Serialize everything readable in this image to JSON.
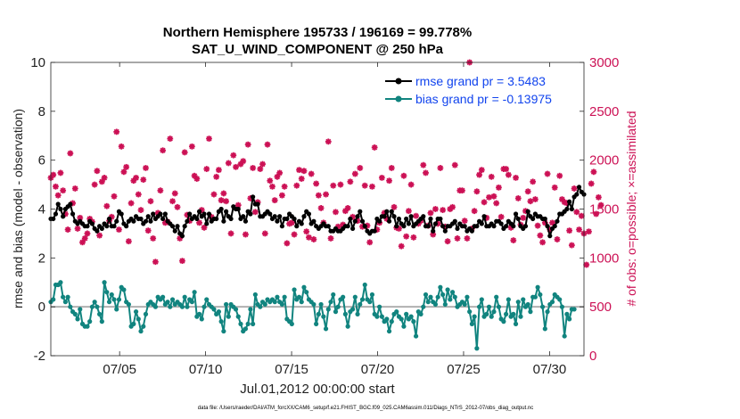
{
  "chart_data": {
    "type": "line",
    "title_line1": "Northern Hemisphere 195733 / 196169 = 99.778%",
    "title_line2": "SAT_U_WIND_COMPONENT @ 250 hPa",
    "xlabel": "Jul.01,2012 00:00:00 start",
    "ylabel_left": "rmse and bias (model - observation)",
    "ylabel_right": "# of obs: o=possible; ×=assimilated",
    "xlim": [
      1,
      32
    ],
    "ylim_left": [
      -2,
      10
    ],
    "ylim_right": [
      0,
      3000
    ],
    "x_ticks": [
      {
        "value": 5,
        "label": "07/05"
      },
      {
        "value": 10,
        "label": "07/10"
      },
      {
        "value": 15,
        "label": "07/15"
      },
      {
        "value": 20,
        "label": "07/20"
      },
      {
        "value": 25,
        "label": "07/25"
      },
      {
        "value": 30,
        "label": "07/30"
      }
    ],
    "y_ticks_left": [
      "-2",
      "0",
      "2",
      "4",
      "6",
      "8",
      "10"
    ],
    "y_ticks_right": [
      "0",
      "500",
      "1000",
      "1500",
      "2000",
      "2500",
      "3000"
    ],
    "legend_position": "top-right",
    "legend": [
      {
        "label": "rmse grand pr = 3.5483",
        "color": "#000000"
      },
      {
        "label": "bias grand pr = -0.13975",
        "color": "#11847f"
      }
    ],
    "colors": {
      "rmse": "#000000",
      "bias": "#11847f",
      "obs": "#cc1155",
      "zero_line": "#b0b0b0"
    },
    "series": [
      {
        "name": "rmse",
        "axis": "left",
        "values": [
          3.6,
          3.6,
          3.8,
          4.2,
          4.0,
          3.7,
          4.0,
          4.1,
          4.2,
          3.8,
          3.5,
          3.4,
          3.5,
          3.4,
          3.3,
          3.3,
          3.5,
          3.4,
          3.2,
          3.1,
          3.3,
          3.2,
          3.4,
          3.3,
          3.6,
          3.3,
          3.3,
          3.5,
          3.9,
          3.8,
          3.4,
          3.3,
          3.5,
          3.6,
          3.5,
          3.7,
          3.6,
          3.6,
          3.4,
          3.5,
          3.7,
          3.5,
          3.8,
          3.6,
          3.7,
          3.8,
          3.6,
          3.8,
          3.5,
          3.4,
          3.3,
          3.1,
          3.3,
          3.0,
          2.9,
          3.3,
          3.5,
          3.8,
          3.6,
          3.7,
          3.6,
          3.9,
          3.7,
          3.8,
          3.4,
          3.8,
          3.5,
          3.6,
          3.6,
          3.9,
          4.0,
          3.5,
          3.9,
          3.7,
          3.6,
          4.1,
          4.0,
          4.0,
          3.6,
          3.7,
          3.5,
          3.9,
          3.8,
          4.5,
          4.2,
          4.2,
          3.7,
          3.7,
          3.8,
          3.9,
          3.8,
          3.6,
          3.7,
          3.5,
          3.7,
          3.3,
          3.6,
          3.6,
          3.8,
          3.7,
          3.6,
          3.3,
          3.5,
          3.4,
          3.7,
          3.9,
          3.8,
          3.4,
          3.5,
          3.3,
          3.2,
          3.3,
          3.4,
          3.3,
          3.3,
          3.1,
          3.1,
          3.2,
          3.1,
          3.1,
          3.2,
          3.3,
          3.3,
          3.6,
          3.2,
          3.5,
          3.7,
          3.9,
          3.5,
          3.3,
          3.1,
          3.0,
          3.1,
          3.1,
          3.6,
          3.5,
          3.7,
          3.7,
          3.9,
          3.5,
          3.9,
          3.7,
          3.3,
          3.6,
          3.4,
          3.3,
          3.6,
          3.4,
          3.7,
          3.3,
          3.4,
          3.5,
          3.6,
          3.7,
          3.3,
          3.3,
          3.6,
          3.1,
          3.4,
          3.6,
          3.6,
          3.3,
          3.1,
          3.3,
          3.3,
          3.4,
          3.5,
          3.2,
          3.4,
          3.3,
          3.3,
          3.1,
          3.2,
          3.1,
          3.3,
          3.3,
          3.5,
          3.4,
          3.7,
          3.3,
          3.3,
          3.4,
          3.3,
          3.5,
          3.5,
          3.4,
          3.2,
          3.3,
          3.5,
          3.4,
          3.3,
          3.8,
          3.6,
          3.3,
          3.2,
          3.3,
          3.9,
          3.7,
          3.6,
          3.8,
          3.7,
          3.7,
          3.6,
          3.6,
          3.3,
          2.9,
          3.2,
          3.3,
          3.5,
          3.8,
          3.8,
          3.9,
          4.0,
          4.3,
          4.0,
          4.5,
          4.6,
          4.9,
          4.7,
          4.6
        ]
      },
      {
        "name": "bias",
        "axis": "left",
        "values": [
          0.2,
          0.3,
          0.9,
          0.9,
          1.0,
          0.4,
          0.2,
          0.4,
          0.0,
          -0.2,
          -0.3,
          -0.5,
          -0.1,
          -0.7,
          -0.8,
          -0.8,
          -0.6,
          0.0,
          0.2,
          0.0,
          -0.3,
          -0.6,
          1.0,
          0.6,
          0.2,
          0.5,
          0.3,
          -0.1,
          0.3,
          0.8,
          0.7,
          0.2,
          0.1,
          -0.8,
          -0.7,
          -0.2,
          -0.5,
          -1.0,
          -0.8,
          -0.3,
          0.1,
          0.2,
          0.1,
          0.0,
          0.4,
          0.3,
          0.4,
          0.1,
          0.2,
          0.0,
          0.3,
          0.1,
          0.2,
          0.1,
          0.0,
          0.4,
          0.0,
          0.3,
          0.2,
          0.6,
          -0.4,
          -0.3,
          -0.5,
          0.0,
          0.3,
          0.1,
          0.0,
          -0.1,
          -0.3,
          -0.2,
          -0.6,
          -1.0,
          0.1,
          -0.4,
          0.1,
          0.0,
          -0.1,
          -0.4,
          -0.7,
          -1.0,
          -0.9,
          -0.7,
          -0.1,
          -0.7,
          0.5,
          0.1,
          0.0,
          0.2,
          0.1,
          0.3,
          0.2,
          0.3,
          0.2,
          0.4,
          0.2,
          0.1,
          0.4,
          -0.5,
          -0.6,
          -0.7,
          0.7,
          0.3,
          0.4,
          0.2,
          0.8,
          0.6,
          0.3,
          0.2,
          0.1,
          -0.7,
          -0.3,
          0.1,
          -0.4,
          -0.9,
          -0.1,
          0.2,
          0.5,
          -0.2,
          0.0,
          0.3,
          0.4,
          -0.3,
          -0.8,
          -0.2,
          -0.1,
          0.4,
          -0.3,
          0.1,
          0.3,
          0.9,
          0.3,
          0.2,
          0.5,
          -0.3,
          -0.4,
          0.0,
          -0.4,
          -0.6,
          -0.5,
          -1.0,
          -0.6,
          -0.3,
          -0.2,
          -0.4,
          -0.5,
          -0.8,
          -0.3,
          -0.5,
          -0.4,
          -0.6,
          -1.2,
          -0.2,
          -0.3,
          0.0,
          0.5,
          0.2,
          0.4,
          0.2,
          0.1,
          0.4,
          0.8,
          0.5,
          0.1,
          0.7,
          0.3,
          0.6,
          0.4,
          0.0,
          0.1,
          0.2,
          0.1,
          0.4,
          -0.2,
          -0.7,
          -0.4,
          -1.7,
          0.0,
          0.3,
          -0.4,
          -0.3,
          0.0,
          -0.4,
          -0.2,
          0.4,
          0.0,
          -0.5,
          -0.6,
          -0.3,
          0.3,
          -0.4,
          -0.3,
          -0.7,
          0.2,
          -0.4,
          0.3,
          0.0,
          0.1,
          -0.2,
          0.4,
          0.4,
          0.8,
          0.5,
          0.0,
          -0.9,
          -0.2,
          0.1,
          0.2,
          0.5,
          0.4,
          0.3,
          0.0,
          -1.2,
          -0.3,
          -0.5,
          -0.1,
          -0.1
        ]
      },
      {
        "name": "obs_assimilated",
        "axis": "right",
        "values": [
          1820,
          1850,
          1730,
          1640,
          1870,
          1690,
          1450,
          1290,
          2070,
          1560,
          1710,
          1300,
          1410,
          1160,
          1200,
          1250,
          1400,
          1370,
          1750,
          1890,
          1230,
          1780,
          1820,
          1530,
          1380,
          1420,
          1630,
          2290,
          1290,
          2140,
          1880,
          1930,
          1170,
          1560,
          1790,
          1820,
          1650,
          1490,
          1800,
          1920,
          1280,
          1580,
          1200,
          960,
          1460,
          1690,
          2100,
          1360,
          1370,
          2220,
          1580,
          1660,
          1520,
          1200,
          970,
          2080,
          1440,
          1380,
          2140,
          1840,
          1810,
          1360,
          1490,
          1310,
          1910,
          2220,
          1420,
          1650,
          1830,
          1900,
          1590,
          1660,
          1580,
          1970,
          1250,
          2050,
          1930,
          1540,
          1960,
          1990,
          1240,
          2160,
          1610,
          1920,
          1470,
          1570,
          1910,
          1960,
          1250,
          2160,
          1790,
          1730,
          1590,
          1830,
          1870,
          1640,
          1730,
          1150,
          1350,
          1360,
          1240,
          1740,
          1900,
          1810,
          1890,
          1270,
          1210,
          1860,
          1190,
          1760,
          1640,
          1510,
          1360,
          1650,
          2190,
          1200,
          1740,
          1470,
          1320,
          1750,
          1340,
          1480,
          1510,
          1780,
          1420,
          1860,
          1380,
          1920,
          1320,
          1740,
          1330,
          1160,
          1730,
          2130,
          1290,
          1360,
          1820,
          1460,
          1400,
          1790,
          1920,
          1520,
          1310,
          1300,
          1120,
          1840,
          1220,
          1480,
          1750,
          1210,
          1430,
          1350,
          1380,
          1950,
          1870,
          1330,
          1460,
          1240,
          1500,
          1350,
          1920,
          1490,
          1320,
          1170,
          1500,
          1520,
          1950,
          1200,
          1690,
          1690,
          1380,
          1200,
          3000,
          1300,
          1480,
          1680,
          1850,
          1900,
          1570,
          1410,
          1620,
          1830,
          1630,
          1560,
          1720,
          1420,
          1910,
          1910,
          1850,
          1310,
          1180,
          1820,
          1610,
          1340,
          1410,
          1480,
          1680,
          1580,
          1780,
          1600,
          1330,
          1230,
          1160,
          1360,
          1860,
          1290,
          1360,
          1720,
          1190,
          1840,
          1600,
          1570,
          1560,
          1280,
          1130,
          1710,
          1470,
          1290,
          1430,
          1250,
          930,
          1270,
          1760,
          1880,
          1450,
          1620,
          1540
        ]
      }
    ],
    "footnote": "data file: /Users/raeder/DAI/ATM_forcXX/CAM6_setup/f.e21.FHIST_BGC.f09_025.CAM6assim.011/Diags_NTrS_2012-07/obs_diag_output.nc"
  }
}
